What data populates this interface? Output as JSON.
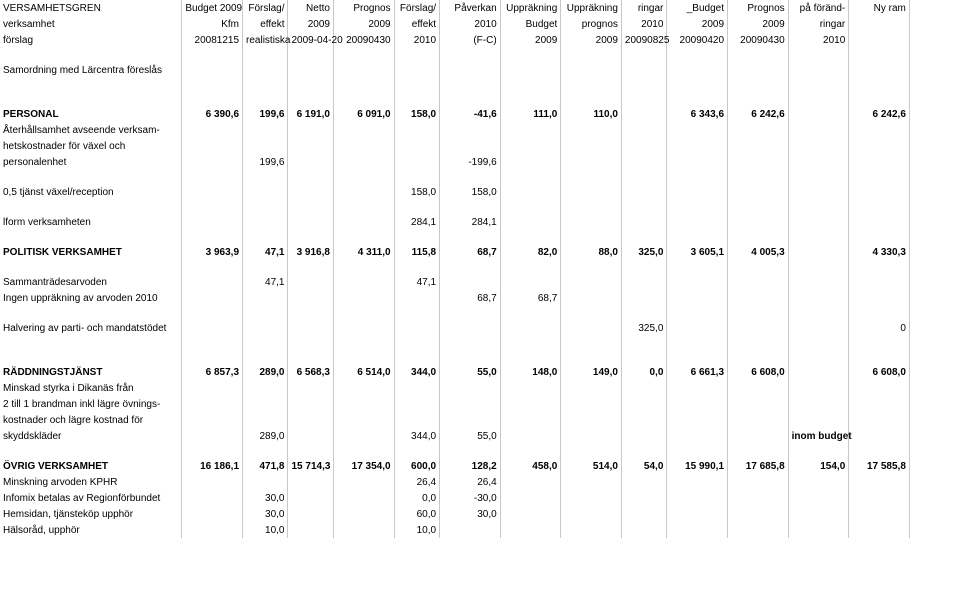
{
  "colors": {
    "border": "#c8c8c8",
    "background": "#ffffff",
    "text": "#000000"
  },
  "columns": [
    {
      "w": 180,
      "align": "left"
    },
    {
      "w": 60,
      "align": "right"
    },
    {
      "w": 45,
      "align": "right"
    },
    {
      "w": 45,
      "align": "right"
    },
    {
      "w": 60,
      "align": "right"
    },
    {
      "w": 45,
      "align": "right"
    },
    {
      "w": 55,
      "align": "right"
    },
    {
      "w": 55,
      "align": "right"
    },
    {
      "w": 55,
      "align": "right"
    },
    {
      "w": 45,
      "align": "right"
    },
    {
      "w": 60,
      "align": "right"
    },
    {
      "w": 60,
      "align": "right"
    },
    {
      "w": 60,
      "align": "right"
    },
    {
      "w": 55,
      "align": "right"
    },
    {
      "w": 50,
      "align": "right"
    }
  ],
  "headers": [
    [
      "VERSAMHETSGREN",
      "Budget 2009",
      "Förslag/",
      "Netto",
      "Prognos",
      "Förslag/",
      "Påverkan",
      "Uppräkning",
      "Uppräkning",
      "ringar",
      "_Budget",
      "Prognos",
      "på föränd-",
      "Ny ram",
      ""
    ],
    [
      "verksamhet",
      "Kfm",
      "effekt",
      "2009",
      "2009",
      "effekt",
      "2010",
      "Budget",
      "prognos",
      "2010",
      "2009",
      "2009",
      "ringar",
      "",
      ""
    ],
    [
      "förslag",
      "20081215",
      "realistiska",
      "2009-04-20",
      "20090430",
      "2010",
      "(F-C)",
      "2009",
      "2009",
      "20090825",
      "20090420",
      "20090430",
      "2010",
      "",
      ""
    ]
  ],
  "rows": [
    {
      "bold": false,
      "cells": [
        "Samordning med Lärcentra föreslås",
        "",
        "",
        "",
        "",
        "",
        "",
        "",
        "",
        "",
        "",
        "",
        "",
        "",
        ""
      ]
    },
    {
      "spacer": true
    },
    {
      "spacer": true
    },
    {
      "bold": true,
      "cells": [
        "PERSONAL",
        "6 390,6",
        "199,6",
        "6 191,0",
        "6 091,0",
        "158,0",
        "-41,6",
        "111,0",
        "110,0",
        "",
        "6 343,6",
        "6 242,6",
        "",
        "6 242,6",
        ""
      ]
    },
    {
      "cells": [
        "Återhållsamhet avseende verksam-",
        "",
        "",
        "",
        "",
        "",
        "",
        "",
        "",
        "",
        "",
        "",
        "",
        "",
        ""
      ]
    },
    {
      "cells": [
        "hetskostnader för växel och",
        "",
        "",
        "",
        "",
        "",
        "",
        "",
        "",
        "",
        "",
        "",
        "",
        "",
        ""
      ]
    },
    {
      "cells": [
        "personalenhet",
        "",
        "199,6",
        "",
        "",
        "",
        "-199,6",
        "",
        "",
        "",
        "",
        "",
        "",
        "",
        ""
      ]
    },
    {
      "spacer": true
    },
    {
      "cells": [
        "0,5 tjänst växel/reception",
        "",
        "",
        "",
        "",
        "158,0",
        "158,0",
        "",
        "",
        "",
        "",
        "",
        "",
        "",
        ""
      ]
    },
    {
      "spacer": true
    },
    {
      "cells": [
        "lform verksamheten",
        "",
        "",
        "",
        "",
        "284,1",
        "284,1",
        "",
        "",
        "",
        "",
        "",
        "",
        "",
        ""
      ]
    },
    {
      "spacer": true
    },
    {
      "bold": true,
      "cells": [
        "POLITISK VERKSAMHET",
        "3 963,9",
        "47,1",
        "3 916,8",
        "4 311,0",
        "115,8",
        "68,7",
        "82,0",
        "88,0",
        "325,0",
        "3 605,1",
        "4 005,3",
        "",
        "4 330,3",
        ""
      ]
    },
    {
      "spacer": true
    },
    {
      "cells": [
        "Sammanträdesarvoden",
        "",
        "47,1",
        "",
        "",
        "47,1",
        "",
        "",
        "",
        "",
        "",
        "",
        "",
        "",
        ""
      ]
    },
    {
      "cells": [
        "Ingen uppräkning av arvoden 2010",
        "",
        "",
        "",
        "",
        "",
        "68,7",
        "68,7",
        "",
        "",
        "",
        "",
        "",
        "",
        ""
      ]
    },
    {
      "spacer": true
    },
    {
      "cells": [
        "Halvering av parti- och mandatstödet",
        "",
        "",
        "",
        "",
        "",
        "",
        "",
        "",
        "325,0",
        "",
        "",
        "",
        "0",
        ""
      ]
    },
    {
      "spacer": true
    },
    {
      "spacer": true
    },
    {
      "bold": true,
      "cells": [
        "RÄDDNINGSTJÄNST",
        "6 857,3",
        "289,0",
        "6 568,3",
        "6 514,0",
        "344,0",
        "55,0",
        "148,0",
        "149,0",
        "0,0",
        "6 661,3",
        "6 608,0",
        "",
        "6 608,0",
        ""
      ]
    },
    {
      "cells": [
        "Minskad styrka i Dikanäs från",
        "",
        "",
        "",
        "",
        "",
        "",
        "",
        "",
        "",
        "",
        "",
        "",
        "",
        ""
      ]
    },
    {
      "cells": [
        "2 till 1 brandman inkl lägre övnings-",
        "",
        "",
        "",
        "",
        "",
        "",
        "",
        "",
        "",
        "",
        "",
        "",
        "",
        ""
      ]
    },
    {
      "cells": [
        "kostnader och lägre kostnad för",
        "",
        "",
        "",
        "",
        "",
        "",
        "",
        "",
        "",
        "",
        "",
        "",
        "",
        ""
      ]
    },
    {
      "cells": [
        "skyddskläder",
        "",
        "289,0",
        "",
        "",
        "344,0",
        "55,0",
        "",
        "",
        "",
        "",
        "",
        "inom budget",
        "",
        ""
      ],
      "boldLast": true
    },
    {
      "spacer": true
    },
    {
      "bold": true,
      "cells": [
        "ÖVRIG VERKSAMHET",
        "16 186,1",
        "471,8",
        "15 714,3",
        "17 354,0",
        "600,0",
        "128,2",
        "458,0",
        "514,0",
        "54,0",
        "15 990,1",
        "17 685,8",
        "154,0",
        "17 585,8",
        ""
      ]
    },
    {
      "cells": [
        "Minskning arvoden KPHR",
        "",
        "",
        "",
        "",
        "26,4",
        "26,4",
        "",
        "",
        "",
        "",
        "",
        "",
        "",
        ""
      ]
    },
    {
      "cells": [
        "Infomix betalas av Regionförbundet",
        "",
        "30,0",
        "",
        "",
        "0,0",
        "-30,0",
        "",
        "",
        "",
        "",
        "",
        "",
        "",
        ""
      ]
    },
    {
      "cells": [
        "Hemsidan, tjänsteköp upphör",
        "",
        "30,0",
        "",
        "",
        "60,0",
        "30,0",
        "",
        "",
        "",
        "",
        "",
        "",
        "",
        ""
      ]
    },
    {
      "cells": [
        "Hälsoråd, upphör",
        "",
        "10,0",
        "",
        "",
        "10,0",
        "",
        "",
        "",
        "",
        "",
        "",
        "",
        "",
        ""
      ]
    }
  ]
}
